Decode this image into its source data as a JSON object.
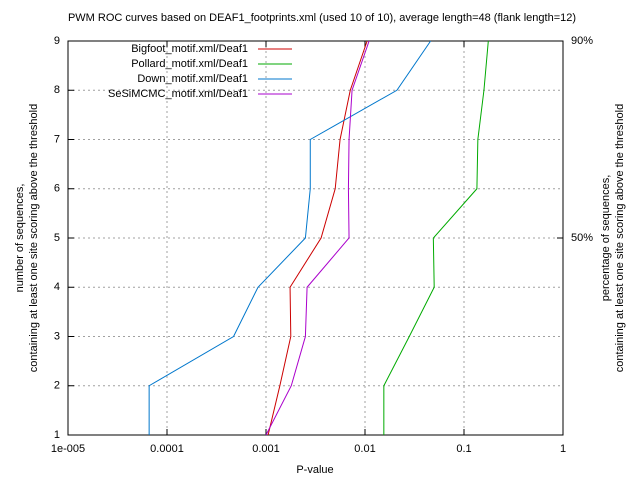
{
  "chart_data": {
    "type": "line",
    "title": "PWM ROC curves based on DEAF1_footprints.xml (used 10 of 10), average length=48 (flank length=12)",
    "xlabel": "P-value",
    "ylabel": [
      "number of sequences,",
      "containing at least one site scoring above the threshold"
    ],
    "y2label": [
      "percentage of sequences,",
      "containing at least one site scoring above the threshold"
    ],
    "xscale": "log",
    "xlim": [
      1e-05,
      1
    ],
    "xticks": [
      {
        "value": 1e-05,
        "label": "1e-005"
      },
      0.0001,
      0.001,
      0.01,
      0.1,
      1
    ],
    "ylim": [
      1,
      9
    ],
    "yticks": [
      1,
      2,
      3,
      4,
      5,
      6,
      7,
      8,
      9
    ],
    "y2lim": [
      10,
      90
    ],
    "y2ticks": [
      {
        "value": 90,
        "label": "90%"
      },
      {
        "value": 50,
        "label": "50%"
      }
    ],
    "grid": true,
    "legend": "top-left",
    "y": [
      1,
      2,
      3,
      4,
      5,
      6,
      7,
      8,
      9
    ],
    "series": [
      {
        "name": "Bigfoot_motif.xml/Deaf1",
        "color": "#cc0000",
        "x": [
          0.00105,
          0.00138,
          0.00178,
          0.00175,
          0.0036,
          0.005,
          0.0056,
          0.0071,
          0.0105
        ]
      },
      {
        "name": "Pollard_motif.xml/Deaf1",
        "color": "#00aa00",
        "x": [
          0.0155,
          0.0155,
          0.028,
          0.05,
          0.049,
          0.135,
          0.138,
          0.159,
          0.176
        ]
      },
      {
        "name": "Down_motif.xml/Deaf1",
        "color": "#0077cc",
        "x": [
          6.6e-05,
          6.6e-05,
          0.00047,
          0.00083,
          0.0025,
          0.0028,
          0.0028,
          0.021,
          0.046
        ]
      },
      {
        "name": "SeSiMCMC_motif.xml/Deaf1",
        "color": "#aa00cc",
        "x": [
          0.001,
          0.0018,
          0.0025,
          0.0026,
          0.0069,
          0.0068,
          0.0069,
          0.0074,
          0.011
        ]
      }
    ]
  }
}
